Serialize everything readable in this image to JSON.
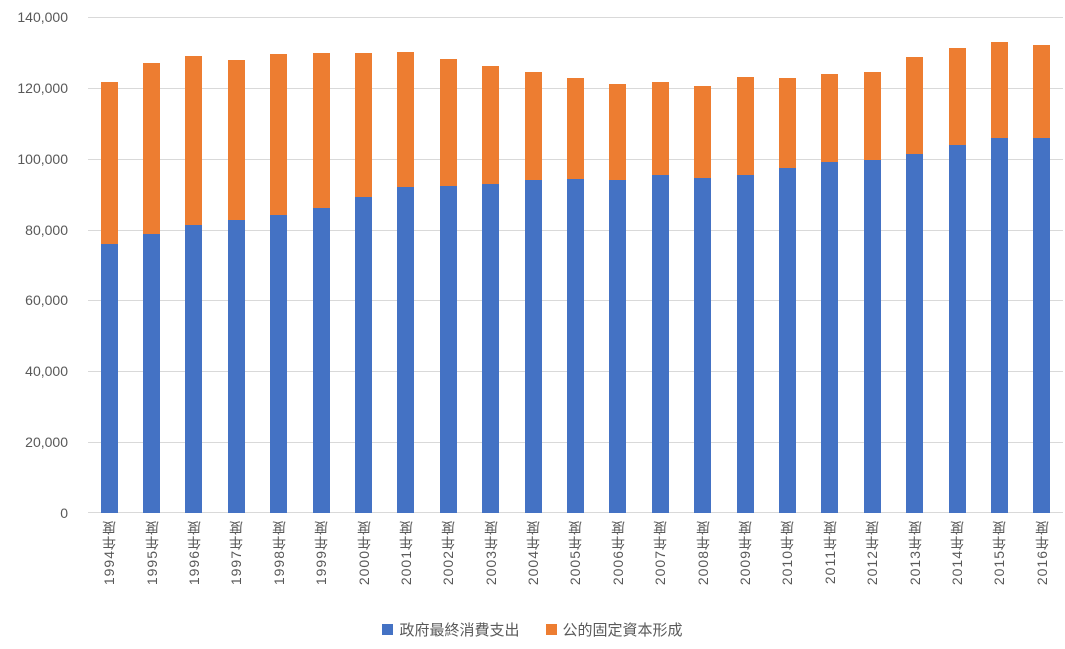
{
  "chart": {
    "background_color": "#FFFFFF",
    "grid_color": "#D9D9D9",
    "axis_text_color": "#595959"
  },
  "chart_data": {
    "type": "bar",
    "stacked": true,
    "title": "",
    "xlabel": "",
    "ylabel": "",
    "grid": true,
    "legend_position": "bottom",
    "ylim": [
      0,
      140000
    ],
    "ytick_interval": 20000,
    "ytick_labels": [
      "0",
      "20,000",
      "40,000",
      "60,000",
      "80,000",
      "100,000",
      "120,000",
      "140,000"
    ],
    "categories": [
      "1994年度",
      "1995年度",
      "1996年度",
      "1997年度",
      "1998年度",
      "1999年度",
      "2000年度",
      "2001年度",
      "2002年度",
      "2003年度",
      "2004年度",
      "2005年度",
      "2006年度",
      "2007年度",
      "2008年度",
      "2009年度",
      "2010年度",
      "2011年度",
      "2012年度",
      "2013年度",
      "2014年度",
      "2015年度",
      "2016年度"
    ],
    "series": [
      {
        "id": "government-final-consumption-expenditure",
        "name": "政府最終消費支出",
        "color": "#4472C4",
        "values": [
          76000,
          78700,
          81300,
          82700,
          84200,
          86000,
          89100,
          91900,
          92300,
          92900,
          94100,
          94400,
          94100,
          95400,
          94700,
          95500,
          97500,
          99200,
          99700,
          101300,
          103800,
          105800,
          105800
        ]
      },
      {
        "id": "public-fixed-capital-formation",
        "name": "公的固定資本形成",
        "color": "#ED7D31",
        "values": [
          45600,
          48400,
          47700,
          45200,
          45300,
          43900,
          40800,
          38200,
          35800,
          33400,
          30300,
          28300,
          27000,
          26200,
          25800,
          27500,
          25300,
          24700,
          24900,
          27500,
          27500,
          27100,
          26300
        ]
      }
    ]
  }
}
